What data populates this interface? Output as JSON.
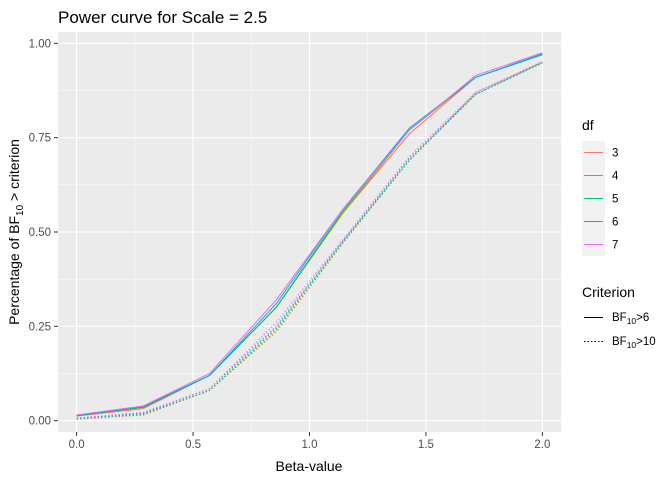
{
  "chart_data": {
    "type": "line",
    "title": "Power curve for Scale = 2.5",
    "xlabel": "Beta-value",
    "ylabel": {
      "pre": "Percentage of BF",
      "sub": "10",
      "post": " > criterion"
    },
    "xlim": [
      -0.08,
      2.08
    ],
    "ylim": [
      -0.03,
      1.03
    ],
    "x_ticks": [
      0.0,
      0.5,
      1.0,
      1.5,
      2.0
    ],
    "x_tick_labels": [
      "0.0",
      "0.5",
      "1.0",
      "1.5",
      "2.0"
    ],
    "y_ticks": [
      0.0,
      0.25,
      0.5,
      0.75,
      1.0
    ],
    "y_tick_labels": [
      "0.00",
      "0.25",
      "0.50",
      "0.75",
      "1.00"
    ],
    "grid": true,
    "x": [
      0.0,
      0.286,
      0.571,
      0.857,
      1.143,
      1.429,
      1.714,
      2.0
    ],
    "color_legend": {
      "title": "df",
      "position": "right",
      "entries": [
        {
          "label": "3",
          "color": "#F8766D"
        },
        {
          "label": "4",
          "color": "#A3A500"
        },
        {
          "label": "5",
          "color": "#00BF7D"
        },
        {
          "label": "6",
          "color": "#00B0F6"
        },
        {
          "label": "7",
          "color": "#E76BF3"
        }
      ]
    },
    "linetype_legend": {
      "title": "Criterion",
      "entries": [
        {
          "pre": "BF",
          "sub": "10",
          "post": ">6",
          "dash": "solid"
        },
        {
          "pre": "BF",
          "sub": "10",
          "post": ">10",
          "dash": "dotted"
        }
      ]
    },
    "series": [
      {
        "df": "3",
        "criterion": "BF10>6",
        "values": [
          0.012,
          0.032,
          0.12,
          0.3,
          0.55,
          0.76,
          0.91,
          0.97
        ]
      },
      {
        "df": "4",
        "criterion": "BF10>6",
        "values": [
          0.015,
          0.035,
          0.12,
          0.3,
          0.55,
          0.77,
          0.91,
          0.97
        ]
      },
      {
        "df": "5",
        "criterion": "BF10>6",
        "values": [
          0.013,
          0.036,
          0.12,
          0.3,
          0.555,
          0.775,
          0.91,
          0.972
        ]
      },
      {
        "df": "6",
        "criterion": "BF10>6",
        "values": [
          0.014,
          0.038,
          0.12,
          0.31,
          0.56,
          0.775,
          0.91,
          0.97
        ]
      },
      {
        "df": "7",
        "criterion": "BF10>6",
        "values": [
          0.015,
          0.039,
          0.125,
          0.32,
          0.56,
          0.77,
          0.915,
          0.975
        ]
      },
      {
        "df": "3",
        "criterion": "BF10>10",
        "values": [
          0.004,
          0.015,
          0.08,
          0.24,
          0.47,
          0.69,
          0.87,
          0.95
        ]
      },
      {
        "df": "4",
        "criterion": "BF10>10",
        "values": [
          0.006,
          0.018,
          0.08,
          0.235,
          0.47,
          0.69,
          0.865,
          0.948
        ]
      },
      {
        "df": "5",
        "criterion": "BF10>10",
        "values": [
          0.005,
          0.017,
          0.08,
          0.245,
          0.475,
          0.69,
          0.865,
          0.948
        ]
      },
      {
        "df": "6",
        "criterion": "BF10>10",
        "values": [
          0.006,
          0.02,
          0.085,
          0.25,
          0.475,
          0.695,
          0.865,
          0.95
        ]
      },
      {
        "df": "7",
        "criterion": "BF10>10",
        "values": [
          0.007,
          0.022,
          0.085,
          0.26,
          0.48,
          0.7,
          0.87,
          0.952
        ]
      }
    ]
  }
}
